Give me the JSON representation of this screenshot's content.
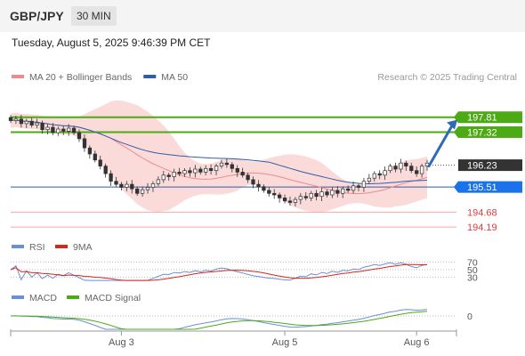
{
  "header": {
    "pair": "GBP/JPY",
    "timeframe": "30 MIN"
  },
  "datetime": "Tuesday, August 5, 2025 9:46:39 PM CET",
  "colors": {
    "bollinger_fill": "#fbdada",
    "ma20": "#f08a8a",
    "ma50": "#2f5ea8",
    "resistance": "#4caa14",
    "pivot": "#2f5ea8",
    "support": "#f4a6a6",
    "support_label": "#e23c3c",
    "current": "#333333",
    "bull": "#ffffff",
    "bear": "#333333",
    "rsi": "#6b8fd6",
    "rsi_ma": "#d9251b",
    "macd": "#6b8fd6",
    "macd_signal": "#4caa14",
    "arrow": "#2f6bb5"
  },
  "chart_data": [
    {
      "type": "candlestick",
      "legend": [
        {
          "label": "MA 20 + Bollinger Bands",
          "color": "#f08a8a"
        },
        {
          "label": "MA 50",
          "color": "#2f5ea8"
        }
      ],
      "credit": "Research © 2025 Trading Central",
      "ylim": [
        193.9,
        198.8
      ],
      "x_ticks": [
        {
          "label": "Aug 3",
          "index": 21
        },
        {
          "label": "Aug 5",
          "index": 52
        },
        {
          "label": "Aug 6",
          "index": 77
        }
      ],
      "n_candles": 80,
      "candles": [
        [
          197.8,
          197.7
        ],
        [
          197.7,
          197.75
        ],
        [
          197.75,
          197.6
        ],
        [
          197.6,
          197.68
        ],
        [
          197.68,
          197.55
        ],
        [
          197.55,
          197.62
        ],
        [
          197.62,
          197.4
        ],
        [
          197.4,
          197.48
        ],
        [
          197.48,
          197.3
        ],
        [
          197.3,
          197.42
        ],
        [
          197.42,
          197.35
        ],
        [
          197.35,
          197.45
        ],
        [
          197.45,
          197.3
        ],
        [
          197.3,
          197.1
        ],
        [
          197.1,
          196.8
        ],
        [
          196.8,
          196.6
        ],
        [
          196.6,
          196.4
        ],
        [
          196.4,
          196.2
        ],
        [
          196.2,
          195.95
        ],
        [
          195.95,
          195.7
        ],
        [
          195.7,
          195.6
        ],
        [
          195.6,
          195.5
        ],
        [
          195.5,
          195.6
        ],
        [
          195.6,
          195.45
        ],
        [
          195.45,
          195.3
        ],
        [
          195.3,
          195.42
        ],
        [
          195.42,
          195.5
        ],
        [
          195.5,
          195.62
        ],
        [
          195.62,
          195.75
        ],
        [
          195.75,
          195.9
        ],
        [
          195.9,
          195.85
        ],
        [
          195.85,
          196.0
        ],
        [
          196.0,
          195.95
        ],
        [
          195.95,
          196.05
        ],
        [
          196.05,
          195.98
        ],
        [
          195.98,
          196.1
        ],
        [
          196.1,
          196.0
        ],
        [
          196.0,
          196.12
        ],
        [
          196.12,
          196.05
        ],
        [
          196.05,
          196.2
        ],
        [
          196.2,
          196.3
        ],
        [
          196.3,
          196.25
        ],
        [
          196.25,
          196.12
        ],
        [
          196.12,
          196.0
        ],
        [
          196.0,
          195.9
        ],
        [
          195.9,
          195.75
        ],
        [
          195.75,
          195.6
        ],
        [
          195.6,
          195.52
        ],
        [
          195.52,
          195.4
        ],
        [
          195.4,
          195.3
        ],
        [
          195.3,
          195.25
        ],
        [
          195.25,
          195.15
        ],
        [
          195.15,
          195.05
        ],
        [
          195.05,
          195.0
        ],
        [
          195.0,
          195.1
        ],
        [
          195.1,
          195.2
        ],
        [
          195.2,
          195.15
        ],
        [
          195.15,
          195.3
        ],
        [
          195.3,
          195.2
        ],
        [
          195.2,
          195.35
        ],
        [
          195.35,
          195.25
        ],
        [
          195.25,
          195.4
        ],
        [
          195.4,
          195.3
        ],
        [
          195.3,
          195.45
        ],
        [
          195.45,
          195.4
        ],
        [
          195.4,
          195.55
        ],
        [
          195.55,
          195.5
        ],
        [
          195.5,
          195.7
        ],
        [
          195.7,
          195.8
        ],
        [
          195.8,
          195.95
        ],
        [
          195.95,
          195.9
        ],
        [
          195.9,
          196.05
        ],
        [
          196.05,
          196.2
        ],
        [
          196.2,
          196.1
        ],
        [
          196.1,
          196.3
        ],
        [
          196.3,
          196.2
        ],
        [
          196.2,
          196.05
        ],
        [
          196.05,
          195.95
        ],
        [
          195.95,
          196.2
        ],
        [
          196.2,
          196.3
        ]
      ],
      "current": {
        "value": 196.23,
        "label": "196.23"
      },
      "levels": [
        {
          "value": 197.81,
          "label": "197.81",
          "kind": "resistance"
        },
        {
          "value": 197.32,
          "label": "197.32",
          "kind": "resistance"
        },
        {
          "value": 195.51,
          "label": "195.51",
          "kind": "pivot"
        },
        {
          "value": 194.68,
          "label": "194.68",
          "kind": "support"
        },
        {
          "value": 194.19,
          "label": "194.19",
          "kind": "support"
        }
      ],
      "forecast_arrow": {
        "from": 196.2,
        "to": 197.7
      }
    },
    {
      "type": "line",
      "series": [
        {
          "name": "RSI"
        },
        {
          "name": "9MA"
        }
      ],
      "ylim": [
        20,
        80
      ],
      "ticks": [
        {
          "value": 70,
          "label": "70"
        },
        {
          "value": 50,
          "label": "50"
        },
        {
          "value": 30,
          "label": "30"
        }
      ]
    },
    {
      "type": "line",
      "series": [
        {
          "name": "MACD"
        },
        {
          "name": "MACD Signal"
        }
      ],
      "ylim": [
        -0.35,
        0.35
      ],
      "ticks": [
        {
          "value": 0,
          "label": "0"
        }
      ]
    }
  ]
}
